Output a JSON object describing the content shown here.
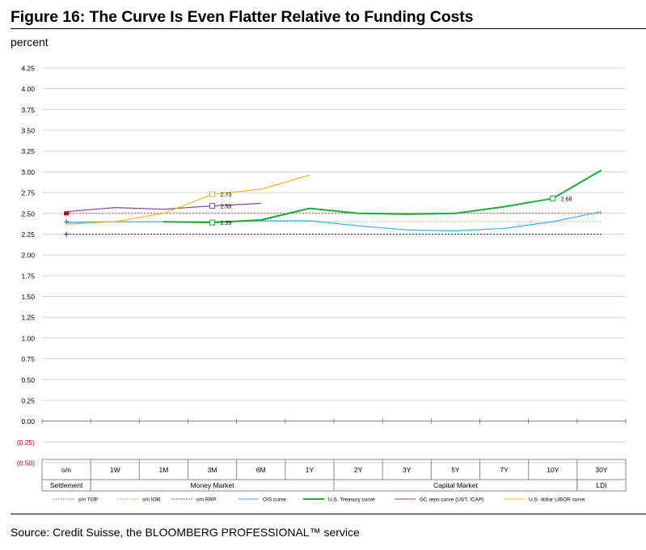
{
  "figure": {
    "title": "Figure 16: The Curve Is Even Flatter Relative to Funding Costs",
    "unit_label": "percent",
    "source": "Source: Credit Suisse, the BLOOMBERG PROFESSIONAL™ service"
  },
  "chart_data": {
    "type": "line",
    "title": "Figure 16: The Curve Is Even Flatter Relative to Funding Costs",
    "ylabel": "percent",
    "ylim": [
      -0.5,
      4.25
    ],
    "yticks": [
      {
        "value": 4.25,
        "label": "4.25"
      },
      {
        "value": 4.0,
        "label": "4.00"
      },
      {
        "value": 3.75,
        "label": "3.75"
      },
      {
        "value": 3.5,
        "label": "3.50"
      },
      {
        "value": 3.25,
        "label": "3.25"
      },
      {
        "value": 3.0,
        "label": "3.00"
      },
      {
        "value": 2.75,
        "label": "2.75"
      },
      {
        "value": 2.5,
        "label": "2.50"
      },
      {
        "value": 2.25,
        "label": "2.25"
      },
      {
        "value": 2.0,
        "label": "2.00"
      },
      {
        "value": 1.75,
        "label": "1.75"
      },
      {
        "value": 1.5,
        "label": "1.50"
      },
      {
        "value": 1.25,
        "label": "1.25"
      },
      {
        "value": 1.0,
        "label": "1.00"
      },
      {
        "value": 0.75,
        "label": "0.75"
      },
      {
        "value": 0.5,
        "label": "0.50"
      },
      {
        "value": 0.25,
        "label": "0.25"
      },
      {
        "value": 0.0,
        "label": "0.00"
      },
      {
        "value": -0.25,
        "label": "(0.25)"
      },
      {
        "value": -0.5,
        "label": "(0.50)"
      }
    ],
    "negative_tick_color": "#cc0000",
    "grid": true,
    "categories": [
      "o/n",
      "1W",
      "1M",
      "3M",
      "6M",
      "1Y",
      "2Y",
      "3Y",
      "5Y",
      "7Y",
      "10Y",
      "30Y"
    ],
    "groups": [
      {
        "label": "Settlement",
        "from": 0,
        "to": 0
      },
      {
        "label": "Money Market",
        "from": 1,
        "to": 5
      },
      {
        "label": "Capital Market",
        "from": 6,
        "to": 10
      },
      {
        "label": "LDI",
        "from": 11,
        "to": 11
      }
    ],
    "reference_lines": [
      {
        "name": "o/n TOP",
        "value": 2.5,
        "color": "#c0504d",
        "dash": "2,2"
      },
      {
        "name": "o/n IOR",
        "value": 2.4,
        "color": "#9e9a5e",
        "dash": "1,2"
      },
      {
        "name": "o/n RRP",
        "value": 2.25,
        "color": "#1f2a5c",
        "dash": "2,2"
      }
    ],
    "series": [
      {
        "name": "OIS curve",
        "color": "#3ab0e0",
        "width": 1.2,
        "x": [
          0,
          1,
          2,
          3,
          4,
          5,
          6,
          7,
          8,
          9,
          10,
          11
        ],
        "values": [
          2.39,
          2.4,
          2.4,
          2.4,
          2.41,
          2.41,
          2.35,
          2.3,
          2.29,
          2.32,
          2.4,
          2.52
        ]
      },
      {
        "name": "U.S. Treasury curve",
        "color": "#1fa83c",
        "width": 2,
        "x": [
          2,
          3,
          4,
          5,
          6,
          7,
          8,
          9,
          10,
          11
        ],
        "values": [
          2.4,
          2.39,
          2.42,
          2.56,
          2.5,
          2.49,
          2.5,
          2.58,
          2.68,
          3.02
        ]
      },
      {
        "name": "GC repo curve (UST, ICAP)",
        "color": "#7a4a98",
        "width": 1.2,
        "x": [
          0,
          1,
          2,
          3,
          4
        ],
        "values": [
          2.52,
          2.57,
          2.55,
          2.59,
          2.62
        ]
      },
      {
        "name": "U.S. dollar LIBOR curve",
        "color": "#f0b432",
        "width": 1.2,
        "x": [
          0,
          1,
          2,
          3,
          4,
          5
        ],
        "values": [
          2.37,
          2.4,
          2.5,
          2.73,
          2.79,
          2.96
        ]
      }
    ],
    "markers": [
      {
        "series": "o/n TOP",
        "x": 0,
        "value": 2.5,
        "shape": "filled-square",
        "color": "#cc0000"
      },
      {
        "series": "o/n IOR",
        "x": 0,
        "value": 2.4,
        "shape": "plus",
        "color": "#555555"
      },
      {
        "series": "o/n RRP",
        "x": 0,
        "value": 2.25,
        "shape": "plus",
        "color": "#1f2a5c"
      },
      {
        "series": "U.S. dollar LIBOR curve",
        "x": 3,
        "value": 2.73,
        "shape": "open-square",
        "color": "#f0b432",
        "label": "2.73"
      },
      {
        "series": "GC repo curve (UST, ICAP)",
        "x": 3,
        "value": 2.59,
        "shape": "open-square",
        "color": "#7a4a98",
        "label": "2.59"
      },
      {
        "series": "U.S. Treasury curve",
        "x": 3,
        "value": 2.39,
        "shape": "open-square",
        "color": "#1fa83c",
        "label": "2.39"
      },
      {
        "series": "U.S. Treasury curve",
        "x": 10,
        "value": 2.68,
        "shape": "open-square",
        "color": "#1fa83c",
        "label": "2.68"
      }
    ],
    "legend": {
      "placement": "bottom",
      "entries": [
        {
          "label": "o/n TOP",
          "color": "#c0504d",
          "style": "dotted"
        },
        {
          "label": "o/n IOR",
          "color": "#9e9a5e",
          "style": "dotted"
        },
        {
          "label": "o/n RRP",
          "color": "#1f2a5c",
          "style": "dotted"
        },
        {
          "label": "OIS curve",
          "color": "#3ab0e0",
          "style": "solid"
        },
        {
          "label": "U.S. Treasury curve",
          "color": "#1fa83c",
          "style": "solid-thick"
        },
        {
          "label": "GC repo curve (UST, ICAP)",
          "color": "#7a4a98",
          "style": "solid"
        },
        {
          "label": "U.S. dollar LIBOR curve",
          "color": "#f0b432",
          "style": "solid"
        }
      ]
    }
  }
}
